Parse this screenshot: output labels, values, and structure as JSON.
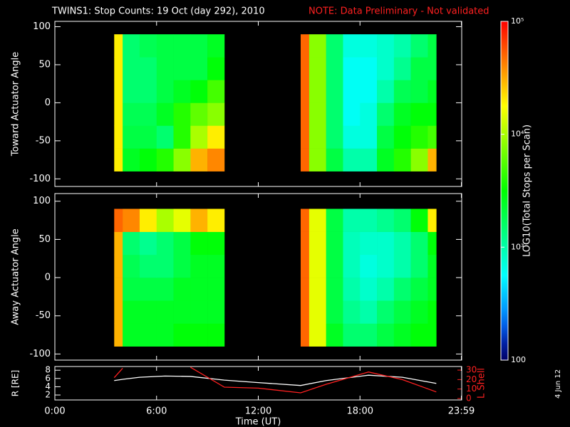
{
  "chart_data": [
    {
      "type": "heatmap",
      "title": "TWINS1: Stop Counts: 19 Oct (day 292), 2010",
      "annotation": "NOTE: Data Preliminary - Not validated",
      "ylabel": "Toward Actuator Angle",
      "xlim": [
        0,
        24
      ],
      "ylim": [
        -110,
        107
      ],
      "yticks": [
        -100,
        -50,
        0,
        50,
        100
      ],
      "y": [
        -90,
        -60,
        -30,
        0,
        30,
        60,
        90
      ],
      "blocks": [
        {
          "x": [
            3.5,
            4,
            5,
            6,
            7,
            8,
            9,
            10
          ],
          "values": [
            [
              20000,
              2500,
              3000,
              4000,
              8000,
              30000,
              40000
            ],
            [
              20000,
              2000,
              2000,
              1500,
              4000,
              10000,
              20000
            ],
            [
              20000,
              1800,
              1800,
              2500,
              4000,
              6000,
              8000
            ],
            [
              20000,
              1500,
              1500,
              2000,
              2500,
              3000,
              5000
            ],
            [
              20000,
              1500,
              1500,
              2000,
              2000,
              2000,
              3000
            ],
            [
              20000,
              1500,
              1800,
              2000,
              2000,
              2000,
              2500
            ]
          ]
        },
        {
          "x": [
            14.5,
            15,
            16,
            17,
            18,
            19,
            20,
            21,
            22,
            22.5
          ],
          "values": [
            [
              50000,
              8000,
              2000,
              1000,
              1000,
              2500,
              4000,
              8000,
              30000
            ],
            [
              50000,
              8000,
              1500,
              700,
              700,
              2000,
              3000,
              4000,
              5000
            ],
            [
              50000,
              8000,
              1500,
              600,
              700,
              1500,
              2500,
              3000,
              3000
            ],
            [
              50000,
              8000,
              1500,
              600,
              600,
              1000,
              1800,
              2000,
              2500
            ],
            [
              50000,
              8000,
              1500,
              600,
              600,
              800,
              1200,
              2000,
              2000
            ],
            [
              50000,
              8000,
              1500,
              700,
              700,
              800,
              1000,
              1500,
              2000
            ]
          ]
        }
      ],
      "colorbar": {
        "label": "LOG10(Total Stops per Scan)",
        "log": true,
        "lim": [
          100,
          100000
        ],
        "ticks": [
          100,
          {
            "value": 1000,
            "label": "10³"
          },
          {
            "value": 10000,
            "label": "10⁴"
          },
          {
            "value": 100000,
            "label": "10⁵"
          }
        ]
      }
    },
    {
      "type": "heatmap",
      "ylabel": "Away Actuator Angle",
      "xlim": [
        0,
        24
      ],
      "ylim": [
        -108,
        110
      ],
      "yticks": [
        -100,
        -50,
        0,
        50,
        100
      ],
      "y": [
        -90,
        -60,
        -30,
        0,
        30,
        60,
        90
      ],
      "blocks": [
        {
          "x": [
            3.5,
            4,
            5,
            6,
            7,
            8,
            9,
            10
          ],
          "values": [
            [
              30000,
              2500,
              2500,
              2500,
              3000,
              3000,
              3000
            ],
            [
              30000,
              2500,
              2500,
              2500,
              2500,
              2500,
              2500
            ],
            [
              30000,
              2000,
              2000,
              2000,
              2500,
              2500,
              2500
            ],
            [
              30000,
              1800,
              1500,
              1500,
              2000,
              2500,
              2500
            ],
            [
              30000,
              1500,
              1200,
              1500,
              2000,
              3000,
              3000
            ],
            [
              50000,
              40000,
              20000,
              10000,
              15000,
              30000,
              20000
            ]
          ]
        },
        {
          "x": [
            14.5,
            15,
            16,
            17,
            18,
            19,
            20,
            21,
            22,
            22.5
          ],
          "values": [
            [
              50000,
              15000,
              2500,
              1500,
              1500,
              2000,
              2500,
              3000,
              3000
            ],
            [
              50000,
              15000,
              2000,
              1200,
              1000,
              1500,
              2000,
              2500,
              3000
            ],
            [
              50000,
              15000,
              2000,
              1000,
              800,
              1000,
              1500,
              2000,
              2500
            ],
            [
              50000,
              15000,
              2000,
              900,
              700,
              800,
              1000,
              1500,
              2500
            ],
            [
              50000,
              15000,
              2000,
              900,
              800,
              800,
              1000,
              1500,
              3000
            ],
            [
              50000,
              15000,
              2000,
              1000,
              1000,
              1200,
              1500,
              3000,
              20000
            ]
          ]
        }
      ]
    },
    {
      "type": "line",
      "xlabel": "Time (UT)",
      "ylabel": "R [RE]",
      "y2label": "L Shell",
      "annotation": "4 Jun 12",
      "xlim": [
        0,
        24
      ],
      "xticks": [
        {
          "value": 0,
          "label": "0:00"
        },
        {
          "value": 6,
          "label": "6:00"
        },
        {
          "value": 12,
          "label": "12:00"
        },
        {
          "value": 18,
          "label": "18:00"
        },
        {
          "value": 23.98,
          "label": "23:59"
        }
      ],
      "ylim": [
        0.8,
        8.9
      ],
      "yticks": [
        2,
        4,
        6,
        8
      ],
      "y2lim": [
        -1.5,
        33.8
      ],
      "y2ticks": [
        0,
        10,
        20,
        30
      ],
      "y2color": "#ff2020",
      "x": [
        3.5,
        4,
        5,
        6.5,
        8,
        10,
        12,
        14.5,
        16,
        18.5,
        20.5,
        22.5
      ],
      "series": [
        {
          "color": "#ffffff",
          "values": [
            5.5,
            5.8,
            6.3,
            6.6,
            6.5,
            5.6,
            5.0,
            4.3,
            5.5,
            6.8,
            6.3,
            4.8
          ]
        },
        {
          "color": "#ff2020",
          "axis": "y2",
          "values": [
            22,
            32,
            null,
            null,
            33,
            12,
            11,
            6,
            15,
            28,
            20,
            7
          ]
        }
      ]
    }
  ]
}
